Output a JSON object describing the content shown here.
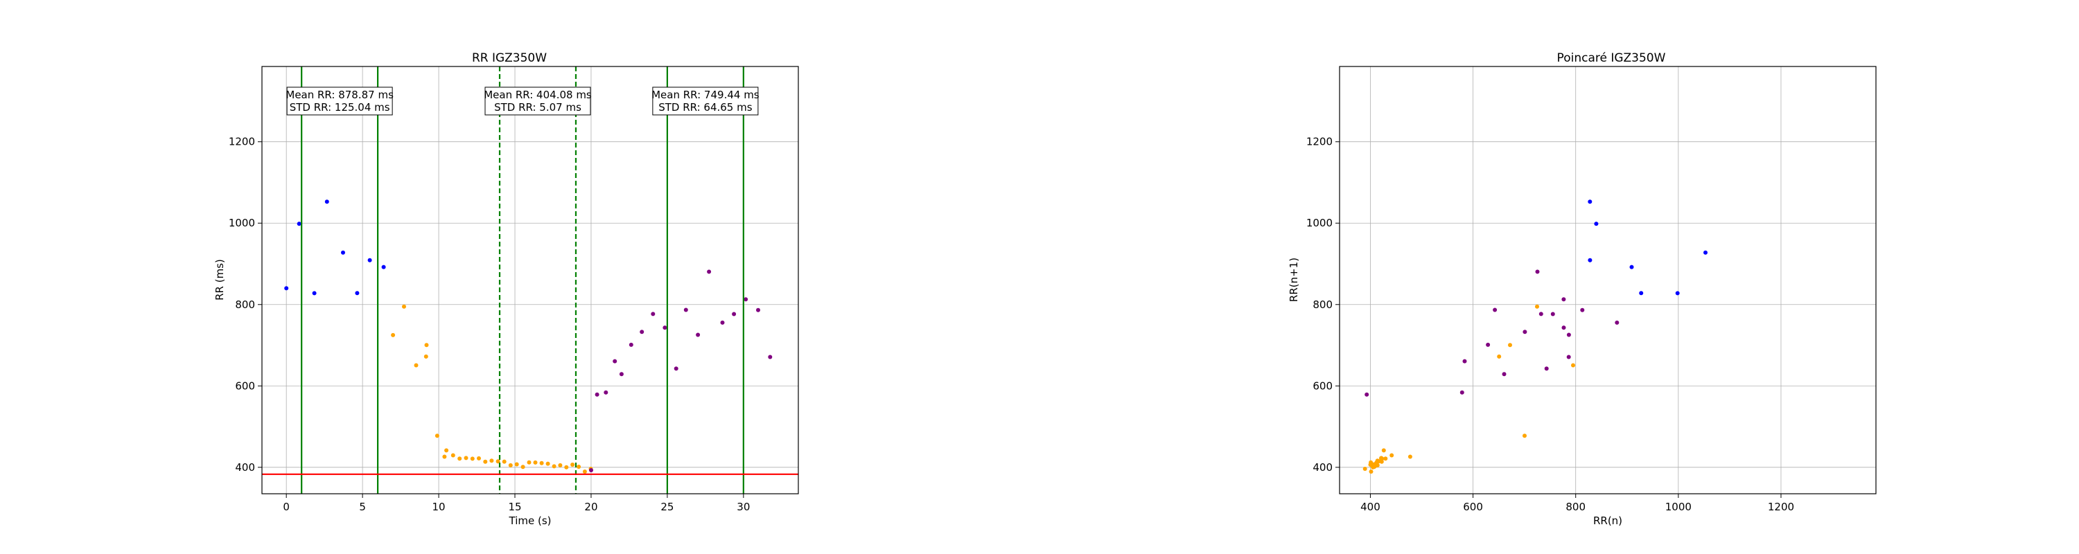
{
  "chart_data": [
    {
      "type": "scatter",
      "title": "RR IGZ350W",
      "xlabel": "Time (s)",
      "ylabel": "RR (ms)",
      "xlim": [
        -1.6,
        33.6
      ],
      "ylim": [
        335,
        1385
      ],
      "xticks": [
        0,
        5,
        10,
        15,
        20,
        25,
        30
      ],
      "yticks": [
        400,
        600,
        800,
        1000,
        1200
      ],
      "grid": true,
      "hline": {
        "y": 383,
        "color": "#ff0000"
      },
      "vlines": [
        {
          "x": 1.0,
          "style": "solid",
          "color": "#008000"
        },
        {
          "x": 6.0,
          "style": "solid",
          "color": "#008000"
        },
        {
          "x": 14.0,
          "style": "dashed",
          "color": "#008000"
        },
        {
          "x": 19.0,
          "style": "dashed",
          "color": "#008000"
        },
        {
          "x": 25.0,
          "style": "solid",
          "color": "#008000"
        },
        {
          "x": 30.0,
          "style": "solid",
          "color": "#008000"
        }
      ],
      "annotations": [
        {
          "x": 3.5,
          "y": 1300,
          "lines": [
            "Mean RR: 878.87 ms",
            "STD RR: 125.04 ms"
          ]
        },
        {
          "x": 16.5,
          "y": 1300,
          "lines": [
            "Mean RR: 404.08 ms",
            "STD RR: 5.07 ms"
          ]
        },
        {
          "x": 27.5,
          "y": 1300,
          "lines": [
            "Mean RR: 749.44 ms",
            "STD RR: 64.65 ms"
          ]
        }
      ],
      "series": [
        {
          "color": "#0000ff",
          "segments": [
            {
              "t0": 0.0,
              "t1": 7.0,
              "mean": 878.87,
              "std": 125.04
            }
          ]
        },
        {
          "color": "#ffa500",
          "segments": [
            {
              "t0": 7.0,
              "t1": 9.2,
              "kind": "hump",
              "base": 700,
              "peak": 790,
              "std": 60
            },
            {
              "t0": 9.2,
              "t1": 10.5,
              "kind": "decay",
              "from": 720,
              "to": 440,
              "std": 18
            },
            {
              "t0": 10.5,
              "t1": 20.0,
              "kind": "decay",
              "from": 440,
              "to": 402,
              "std": 5.07
            }
          ]
        },
        {
          "color": "#800080",
          "segments": [
            {
              "t0": 20.0,
              "t1": 22.0,
              "kind": "rise",
              "from": 400,
              "to": 690,
              "std": 30
            },
            {
              "t0": 22.0,
              "t1": 32.0,
              "mean": 749.44,
              "std": 64.65
            }
          ]
        }
      ]
    },
    {
      "type": "scatter",
      "title": "Poincaré IGZ350W",
      "xlabel": "RR(n)",
      "ylabel": "RR(n+1)",
      "xlim": [
        340,
        1385
      ],
      "ylim": [
        335,
        1385
      ],
      "xticks": [
        400,
        600,
        800,
        1000,
        1200
      ],
      "yticks": [
        400,
        600,
        800,
        1000,
        1200
      ],
      "grid": true,
      "series": [
        {
          "color": "#0000ff",
          "source": "blue"
        },
        {
          "color": "#ffa500",
          "source": "orange"
        },
        {
          "color": "#800080",
          "source": "purple"
        }
      ]
    }
  ]
}
